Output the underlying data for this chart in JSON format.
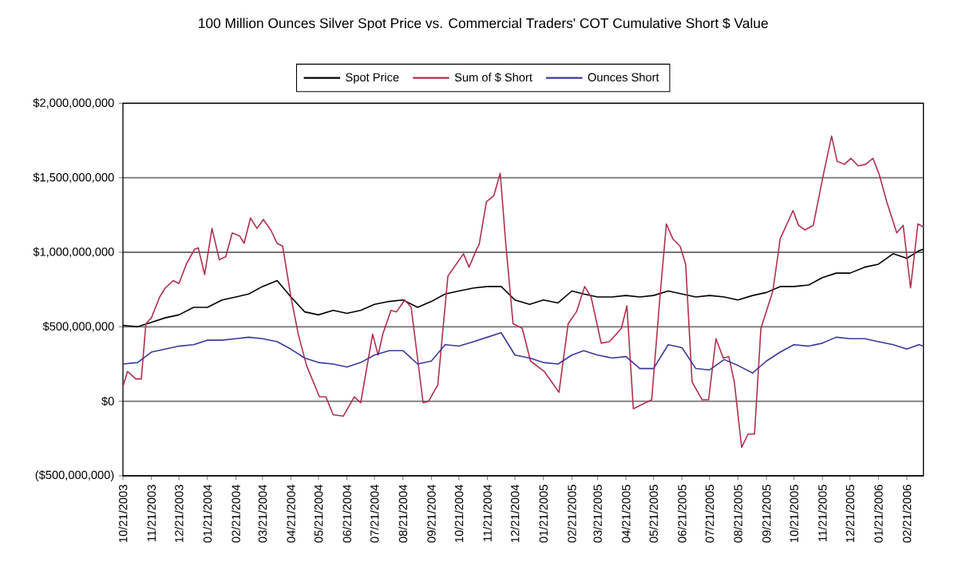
{
  "chart_data": {
    "type": "line",
    "title": "100 Million Ounces Silver Spot Price vs. Commercial Traders' COT Cumulative Short $ Value",
    "x": [
      "2003-10-21",
      "2003-11-06",
      "2003-11-21",
      "2003-12-06",
      "2003-12-21",
      "2004-01-06",
      "2004-01-21",
      "2004-02-06",
      "2004-02-21",
      "2004-03-06",
      "2004-03-21",
      "2004-04-06",
      "2004-04-21",
      "2004-05-06",
      "2004-05-21",
      "2004-06-06",
      "2004-06-21",
      "2004-07-06",
      "2004-07-21",
      "2004-08-06",
      "2004-08-21",
      "2004-09-06",
      "2004-09-21",
      "2004-10-06",
      "2004-10-21",
      "2004-11-06",
      "2004-11-21",
      "2004-12-06",
      "2004-12-21",
      "2005-01-06",
      "2005-01-21",
      "2005-02-06",
      "2005-02-21",
      "2005-03-06",
      "2005-03-21",
      "2005-04-06",
      "2005-04-21",
      "2005-05-06",
      "2005-05-21",
      "2005-06-06",
      "2005-06-21",
      "2005-07-06",
      "2005-07-21",
      "2005-08-06",
      "2005-08-21",
      "2005-09-06",
      "2005-09-21",
      "2005-10-06",
      "2005-10-21",
      "2005-11-06",
      "2005-11-21",
      "2005-12-06",
      "2005-12-21",
      "2006-01-06",
      "2006-01-21",
      "2006-02-06",
      "2006-02-21",
      "2006-03-06",
      "2006-03-11"
    ],
    "series": [
      {
        "name": "Spot Price",
        "color": "#000000",
        "values": [
          510000000,
          500000000,
          530000000,
          560000000,
          580000000,
          630000000,
          630000000,
          680000000,
          700000000,
          720000000,
          770000000,
          810000000,
          700000000,
          600000000,
          580000000,
          610000000,
          590000000,
          610000000,
          650000000,
          670000000,
          680000000,
          630000000,
          670000000,
          720000000,
          740000000,
          760000000,
          770000000,
          770000000,
          680000000,
          650000000,
          680000000,
          660000000,
          740000000,
          720000000,
          700000000,
          700000000,
          710000000,
          700000000,
          710000000,
          740000000,
          720000000,
          700000000,
          710000000,
          700000000,
          680000000,
          710000000,
          730000000,
          770000000,
          770000000,
          780000000,
          830000000,
          860000000,
          860000000,
          900000000,
          920000000,
          990000000,
          960000000,
          1010000000,
          1020000000
        ]
      },
      {
        "name": "Sum of $ Short",
        "color": "#b0304e",
        "x": [
          "2003-10-21",
          "2003-10-26",
          "2003-11-04",
          "2003-11-10",
          "2003-11-15",
          "2003-11-21",
          "2003-11-30",
          "2003-12-06",
          "2003-12-15",
          "2003-12-21",
          "2003-12-29",
          "2004-01-07",
          "2004-01-11",
          "2004-01-18",
          "2004-01-26",
          "2004-02-03",
          "2004-02-10",
          "2004-02-17",
          "2004-02-25",
          "2004-03-01",
          "2004-03-08",
          "2004-03-15",
          "2004-03-22",
          "2004-03-30",
          "2004-04-06",
          "2004-04-12",
          "2004-04-21",
          "2004-04-29",
          "2004-05-08",
          "2004-05-22",
          "2004-05-29",
          "2004-06-06",
          "2004-06-17",
          "2004-06-29",
          "2004-07-06",
          "2004-07-19",
          "2004-07-25",
          "2004-07-30",
          "2004-08-08",
          "2004-08-14",
          "2004-08-23",
          "2004-08-30",
          "2004-09-12",
          "2004-09-18",
          "2004-09-28",
          "2004-10-09",
          "2004-10-18",
          "2004-10-26",
          "2004-11-01",
          "2004-11-10",
          "2004-11-12",
          "2004-11-20",
          "2004-11-28",
          "2004-12-05",
          "2004-12-11",
          "2004-12-19",
          "2004-12-29",
          "2005-01-07",
          "2005-01-22",
          "2005-02-07",
          "2005-02-17",
          "2005-02-26",
          "2005-03-07",
          "2005-03-14",
          "2005-03-25",
          "2005-04-03",
          "2005-04-16",
          "2005-04-22",
          "2005-04-29",
          "2005-05-19",
          "2005-05-28",
          "2005-06-04",
          "2005-06-11",
          "2005-06-19",
          "2005-06-25",
          "2005-07-02",
          "2005-07-13",
          "2005-07-20",
          "2005-07-28",
          "2005-08-05",
          "2005-08-11",
          "2005-08-17",
          "2005-08-25",
          "2005-09-01",
          "2005-09-08",
          "2005-09-15",
          "2005-09-28",
          "2005-10-06",
          "2005-10-20",
          "2005-10-26",
          "2005-11-02",
          "2005-11-11",
          "2005-11-22",
          "2005-12-01",
          "2005-12-07",
          "2005-12-15",
          "2005-12-22",
          "2005-12-30",
          "2006-01-07",
          "2006-01-15",
          "2006-01-22",
          "2006-01-30",
          "2006-02-10",
          "2006-02-17",
          "2006-02-25",
          "2006-03-05",
          "2006-03-11"
        ],
        "values": [
          100000000,
          200000000,
          150000000,
          150000000,
          520000000,
          560000000,
          700000000,
          760000000,
          810000000,
          790000000,
          920000000,
          1020000000,
          1030000000,
          850000000,
          1160000000,
          950000000,
          970000000,
          1130000000,
          1110000000,
          1060000000,
          1230000000,
          1160000000,
          1220000000,
          1150000000,
          1060000000,
          1040000000,
          700000000,
          450000000,
          240000000,
          30000000,
          30000000,
          -90000000,
          -100000000,
          30000000,
          -10000000,
          450000000,
          310000000,
          450000000,
          610000000,
          600000000,
          680000000,
          630000000,
          -10000000,
          0,
          110000000,
          840000000,
          920000000,
          990000000,
          900000000,
          1030000000,
          1050000000,
          1340000000,
          1380000000,
          1530000000,
          1060000000,
          520000000,
          490000000,
          270000000,
          200000000,
          60000000,
          520000000,
          600000000,
          770000000,
          700000000,
          390000000,
          400000000,
          490000000,
          640000000,
          -50000000,
          10000000,
          700000000,
          1190000000,
          1090000000,
          1040000000,
          920000000,
          130000000,
          10000000,
          10000000,
          420000000,
          290000000,
          300000000,
          130000000,
          -310000000,
          -220000000,
          -220000000,
          490000000,
          740000000,
          1090000000,
          1280000000,
          1180000000,
          1150000000,
          1180000000,
          1520000000,
          1780000000,
          1610000000,
          1590000000,
          1630000000,
          1580000000,
          1590000000,
          1630000000,
          1520000000,
          1340000000,
          1130000000,
          1180000000,
          760000000,
          1190000000,
          1170000000
        ]
      },
      {
        "name": "Ounces Short",
        "color": "#3a3a9c",
        "values": [
          250000000,
          260000000,
          330000000,
          350000000,
          370000000,
          380000000,
          410000000,
          410000000,
          420000000,
          430000000,
          420000000,
          400000000,
          350000000,
          290000000,
          260000000,
          250000000,
          230000000,
          260000000,
          310000000,
          340000000,
          340000000,
          250000000,
          270000000,
          380000000,
          370000000,
          400000000,
          430000000,
          460000000,
          310000000,
          290000000,
          260000000,
          250000000,
          310000000,
          340000000,
          310000000,
          290000000,
          300000000,
          220000000,
          220000000,
          380000000,
          360000000,
          220000000,
          210000000,
          280000000,
          240000000,
          190000000,
          270000000,
          330000000,
          380000000,
          370000000,
          390000000,
          430000000,
          420000000,
          420000000,
          400000000,
          380000000,
          350000000,
          380000000,
          370000000
        ]
      }
    ],
    "xlim": [
      "2003-10-21",
      "2006-03-11"
    ],
    "xticks": [
      {
        "value": "2003-10-21",
        "label": "10/21/2003"
      },
      {
        "value": "2003-11-21",
        "label": "11/21/2003"
      },
      {
        "value": "2003-12-21",
        "label": "12/21/2003"
      },
      {
        "value": "2004-01-21",
        "label": "01/21/2004"
      },
      {
        "value": "2004-02-21",
        "label": "02/21/2004"
      },
      {
        "value": "2004-03-21",
        "label": "03/21/2004"
      },
      {
        "value": "2004-04-21",
        "label": "04/21/2004"
      },
      {
        "value": "2004-05-21",
        "label": "05/21/2004"
      },
      {
        "value": "2004-06-21",
        "label": "06/21/2004"
      },
      {
        "value": "2004-07-21",
        "label": "07/21/2004"
      },
      {
        "value": "2004-08-21",
        "label": "08/21/2004"
      },
      {
        "value": "2004-09-21",
        "label": "09/21/2004"
      },
      {
        "value": "2004-10-21",
        "label": "10/21/2004"
      },
      {
        "value": "2004-11-21",
        "label": "11/21/2004"
      },
      {
        "value": "2004-12-21",
        "label": "12/21/2004"
      },
      {
        "value": "2005-01-21",
        "label": "01/21/2005"
      },
      {
        "value": "2005-02-21",
        "label": "02/21/2005"
      },
      {
        "value": "2005-03-21",
        "label": "03/21/2005"
      },
      {
        "value": "2005-04-21",
        "label": "04/21/2005"
      },
      {
        "value": "2005-05-21",
        "label": "05/21/2005"
      },
      {
        "value": "2005-06-21",
        "label": "06/21/2005"
      },
      {
        "value": "2005-07-21",
        "label": "07/21/2005"
      },
      {
        "value": "2005-08-21",
        "label": "08/21/2005"
      },
      {
        "value": "2005-09-21",
        "label": "09/21/2005"
      },
      {
        "value": "2005-10-21",
        "label": "10/21/2005"
      },
      {
        "value": "2005-11-21",
        "label": "11/21/2005"
      },
      {
        "value": "2005-12-21",
        "label": "12/21/2005"
      },
      {
        "value": "2006-01-21",
        "label": "01/21/2006"
      },
      {
        "value": "2006-02-21",
        "label": "02/21/2006"
      }
    ],
    "ylim": [
      -500000000,
      2000000000
    ],
    "yticks": [
      {
        "value": -500000000,
        "label": "($500,000,000)"
      },
      {
        "value": 0,
        "label": "$0"
      },
      {
        "value": 500000000,
        "label": "$500,000,000"
      },
      {
        "value": 1000000000,
        "label": "$1,000,000,000"
      },
      {
        "value": 1500000000,
        "label": "$1,500,000,000"
      },
      {
        "value": 2000000000,
        "label": "$2,000,000,000"
      }
    ],
    "grid": "y",
    "legend": "top"
  }
}
